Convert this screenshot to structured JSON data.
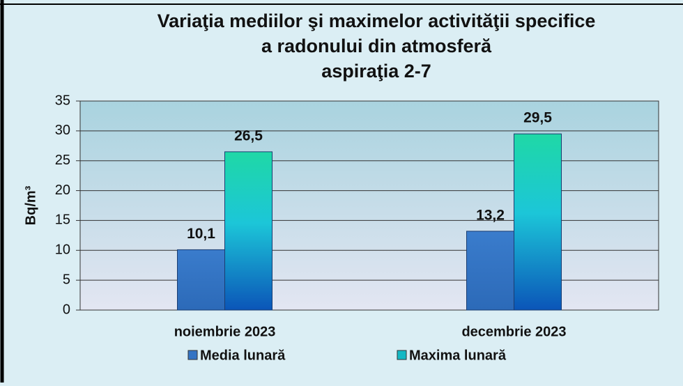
{
  "chart_data": {
    "type": "bar",
    "title": [
      "Variaţia mediilor şi maximelor activităţii specifice",
      "a radonului din atmosferă",
      "aspiraţia 2-7"
    ],
    "y_label": "Bq/m³",
    "categories": [
      "noiembrie 2023",
      "decembrie 2023"
    ],
    "series": [
      {
        "name": "Media lunară",
        "color": "#3474c4",
        "values": [
          10.1,
          13.2
        ],
        "value_labels": [
          "10,1",
          "13,2"
        ]
      },
      {
        "name": "Maxima lunară",
        "color": "#14b8c4",
        "values": [
          26.5,
          29.5
        ],
        "value_labels": [
          "26,5",
          "29,5"
        ]
      }
    ],
    "ylim": [
      0,
      35
    ],
    "yticks": [
      0,
      5,
      10,
      15,
      20,
      25,
      30,
      35
    ],
    "grid": true,
    "legend": "bottom"
  }
}
